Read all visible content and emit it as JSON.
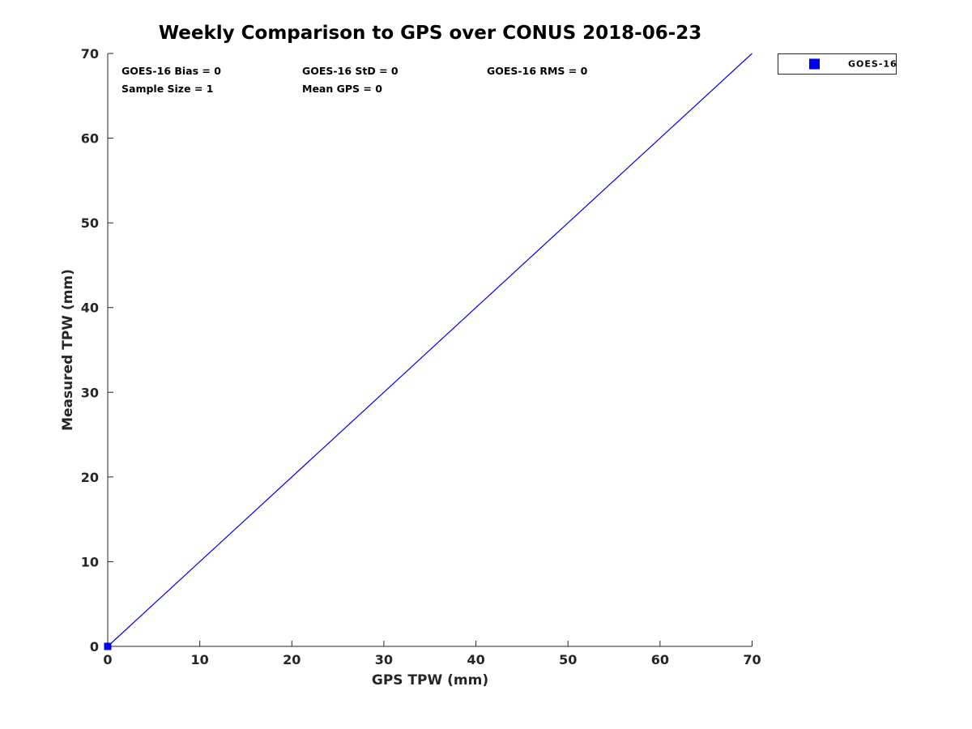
{
  "figure": {
    "background": "#ffffff"
  },
  "chart_data": {
    "type": "line",
    "title": "Weekly Comparison to GPS over CONUS 2018-06-23",
    "xlabel": "GPS TPW (mm)",
    "ylabel": "Measured TPW (mm)",
    "xlim": [
      0,
      70
    ],
    "ylim": [
      0,
      70
    ],
    "xticks": [
      0,
      10,
      20,
      30,
      40,
      50,
      60,
      70
    ],
    "yticks": [
      0,
      10,
      20,
      30,
      40,
      50,
      60,
      70
    ],
    "grid": false,
    "axis_color": "#262626",
    "text_color": "#000000",
    "annotations": [
      "GOES-16 Bias = 0",
      "GOES-16 StD = 0",
      "GOES-16 RMS = 0",
      "Sample Size = 1",
      "Mean GPS = 0"
    ],
    "legend": {
      "position": "outside-top-right",
      "label": "GOES-16",
      "marker": "square",
      "marker_color": "#0000ee"
    },
    "series": [
      {
        "name": "one-to-one reference line",
        "type": "line",
        "color": "#0000ee",
        "x": [
          0,
          70
        ],
        "y": [
          0,
          70
        ]
      },
      {
        "name": "GOES-16",
        "type": "scatter",
        "marker": "square",
        "marker_size": 9,
        "color": "#0000ee",
        "x": [
          0
        ],
        "y": [
          0
        ]
      }
    ]
  }
}
